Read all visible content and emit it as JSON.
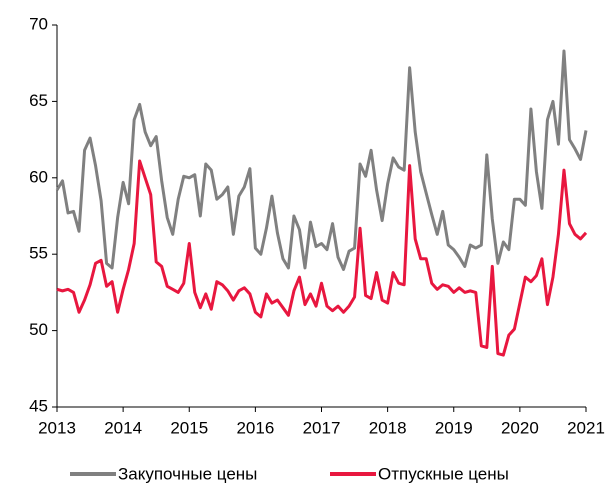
{
  "chart_data": {
    "type": "line",
    "x": [
      2013,
      2013.083,
      2013.167,
      2013.25,
      2013.333,
      2013.417,
      2013.5,
      2013.583,
      2013.667,
      2013.75,
      2013.833,
      2013.917,
      2014,
      2014.083,
      2014.167,
      2014.25,
      2014.333,
      2014.417,
      2014.5,
      2014.583,
      2014.667,
      2014.75,
      2014.833,
      2014.917,
      2015,
      2015.083,
      2015.167,
      2015.25,
      2015.333,
      2015.417,
      2015.5,
      2015.583,
      2015.667,
      2015.75,
      2015.833,
      2015.917,
      2016,
      2016.083,
      2016.167,
      2016.25,
      2016.333,
      2016.417,
      2016.5,
      2016.583,
      2016.667,
      2016.75,
      2016.833,
      2016.917,
      2017,
      2017.083,
      2017.167,
      2017.25,
      2017.333,
      2017.417,
      2017.5,
      2017.583,
      2017.667,
      2017.75,
      2017.833,
      2017.917,
      2018,
      2018.083,
      2018.167,
      2018.25,
      2018.333,
      2018.417,
      2018.5,
      2018.583,
      2018.667,
      2018.75,
      2018.833,
      2018.917,
      2019,
      2019.083,
      2019.167,
      2019.25,
      2019.333,
      2019.417,
      2019.5,
      2019.583,
      2019.667,
      2019.75,
      2019.833,
      2019.917,
      2020,
      2020.083,
      2020.167,
      2020.25,
      2020.333,
      2020.417,
      2020.5,
      2020.583,
      2020.667,
      2020.75,
      2020.833,
      2020.917,
      2021
    ],
    "series": [
      {
        "name": "Закупочные цены",
        "color": "#808080",
        "values": [
          59.2,
          59.8,
          57.7,
          57.8,
          56.5,
          61.8,
          62.6,
          60.8,
          58.5,
          54.4,
          54.1,
          57.4,
          59.7,
          58.3,
          63.8,
          64.8,
          63.0,
          62.1,
          62.7,
          59.8,
          57.4,
          56.3,
          58.6,
          60.1,
          60.0,
          60.2,
          57.5,
          60.9,
          60.5,
          58.6,
          58.9,
          59.4,
          56.3,
          58.8,
          59.4,
          60.6,
          55.4,
          55.0,
          56.7,
          58.8,
          56.4,
          54.7,
          54.1,
          57.5,
          56.6,
          54.1,
          57.1,
          55.5,
          55.7,
          55.3,
          57.0,
          54.8,
          54.0,
          55.2,
          55.4,
          60.9,
          60.1,
          61.8,
          59.2,
          57.2,
          59.6,
          61.3,
          60.7,
          60.5,
          67.2,
          63.0,
          60.4,
          59.0,
          57.6,
          56.3,
          57.8,
          55.6,
          55.3,
          54.8,
          54.2,
          55.6,
          55.4,
          55.6,
          61.5,
          57.3,
          54.4,
          55.8,
          55.3,
          58.6,
          58.6,
          58.2,
          64.5,
          60.4,
          58.0,
          63.8,
          65.0,
          62.2,
          68.3,
          62.5,
          61.9,
          61.2,
          63.1
        ]
      },
      {
        "name": "Отпускные цены",
        "color": "#e8173f",
        "values": [
          52.7,
          52.6,
          52.7,
          52.5,
          51.2,
          52.0,
          53.0,
          54.4,
          54.6,
          52.9,
          53.2,
          51.2,
          52.7,
          54.0,
          55.7,
          61.1,
          60.0,
          58.9,
          54.5,
          54.2,
          52.9,
          52.7,
          52.5,
          53.1,
          55.7,
          52.5,
          51.5,
          52.4,
          51.4,
          53.2,
          53.0,
          52.6,
          52.0,
          52.6,
          52.8,
          52.4,
          51.2,
          50.9,
          52.4,
          51.8,
          52.0,
          51.5,
          51.0,
          52.6,
          53.5,
          51.7,
          52.4,
          51.6,
          53.1,
          51.6,
          51.3,
          51.6,
          51.2,
          51.6,
          52.2,
          56.7,
          52.3,
          52.1,
          53.8,
          52.0,
          51.8,
          53.8,
          53.1,
          53.0,
          60.8,
          56.0,
          54.7,
          54.7,
          53.1,
          52.7,
          53.0,
          52.9,
          52.5,
          52.8,
          52.5,
          52.6,
          52.5,
          49.0,
          48.9,
          54.2,
          48.5,
          48.4,
          49.7,
          50.1,
          51.8,
          53.5,
          53.2,
          53.6,
          54.7,
          51.7,
          53.5,
          56.3,
          60.5,
          57.0,
          56.3,
          56.0,
          56.4
        ]
      }
    ],
    "xlim": [
      2013,
      2021
    ],
    "xticks": [
      2013,
      2014,
      2015,
      2016,
      2017,
      2018,
      2019,
      2020,
      2021
    ],
    "ylim": [
      45,
      70
    ],
    "yticks": [
      45,
      50,
      55,
      60,
      65,
      70
    ],
    "grid": false,
    "legend": "bottom"
  }
}
